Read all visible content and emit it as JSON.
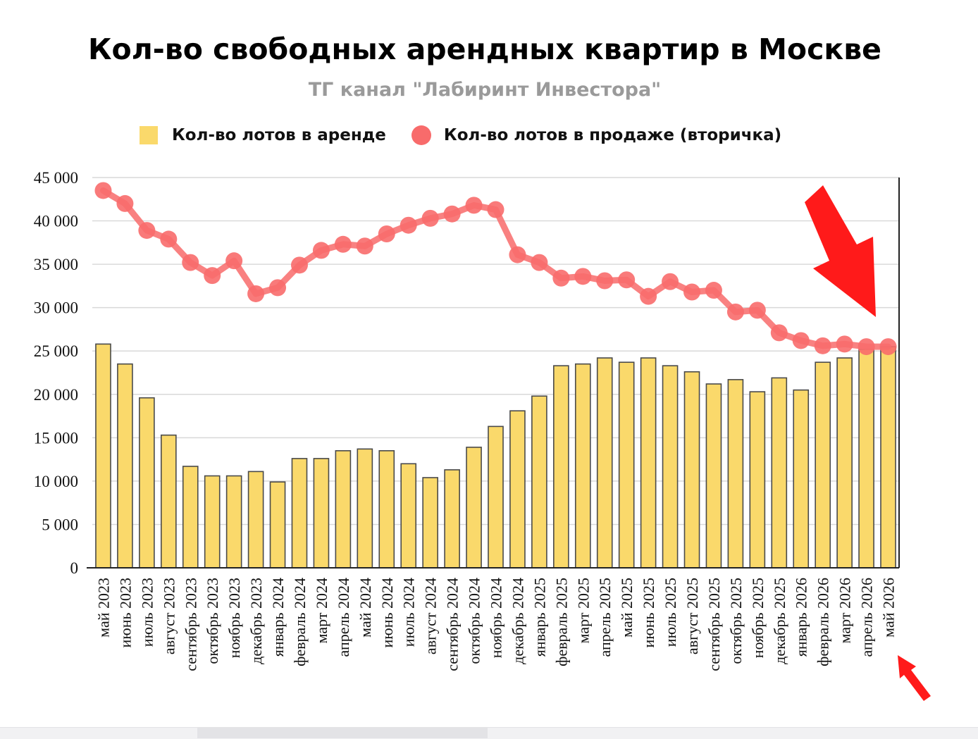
{
  "title": "Кол-во свободных арендных квартир в Москве",
  "subtitle": "ТГ канал \"Лабиринт Инвестора\"",
  "legend": {
    "rent_label": "Кол-во лотов в аренде",
    "sale_label": "Кол-во лотов в продаже (вторичка)"
  },
  "colors": {
    "bar_fill": "#fad96b",
    "bar_stroke": "#4a4a4a",
    "line": "#f86b6b",
    "arrow": "#ff1a1a"
  },
  "chart_data": {
    "type": "bar",
    "title": "Кол-во свободных арендных квартир в Москве",
    "subtitle": "ТГ канал \"Лабиринт Инвестора\"",
    "ylim": [
      0,
      45000
    ],
    "y_ticks": [
      "0",
      "5 000",
      "10 000",
      "15 000",
      "20 000",
      "25 000",
      "30 000",
      "35 000",
      "40 000",
      "45 000"
    ],
    "grid": true,
    "legend_position": "top",
    "categories": [
      "май 2023",
      "июнь 2023",
      "июль 2023",
      "август 2023",
      "сентябрь 2023",
      "октябрь 2023",
      "ноябрь 2023",
      "декабрь 2023",
      "январь 2024",
      "февраль 2024",
      "март 2024",
      "апрель 2024",
      "май 2024",
      "июнь 2024",
      "июль 2024",
      "август 2024",
      "сентябрь 2024",
      "октябрь 2024",
      "ноябрь 2024",
      "декабрь 2024",
      "январь 2025",
      "февраль 2025",
      "март 2025",
      "апрель 2025",
      "май 2025",
      "июнь 2025",
      "июль 2025",
      "август 2025",
      "сентябрь 2025",
      "октябрь 2025",
      "ноябрь 2025",
      "декабрь 2025",
      "январь 2026",
      "февраль 2026",
      "март 2026",
      "апрель 2026",
      "май 2026"
    ],
    "series": [
      {
        "name": "Кол-во лотов в аренде",
        "type": "bar",
        "values": [
          25800,
          23500,
          19600,
          15300,
          11700,
          10600,
          10600,
          11100,
          9900,
          12600,
          12600,
          13500,
          13700,
          13500,
          12000,
          10400,
          11300,
          13900,
          16300,
          18100,
          19800,
          23300,
          23500,
          24200,
          23700,
          24200,
          23300,
          22600,
          21200,
          21700,
          20300,
          21900,
          20500,
          23700,
          24200,
          25200,
          25500
        ]
      },
      {
        "name": "Кол-во лотов в продаже (вторичка)",
        "type": "line",
        "values": [
          43500,
          42000,
          38900,
          37900,
          35200,
          33700,
          35400,
          31600,
          32300,
          34900,
          36600,
          37300,
          37100,
          38500,
          39500,
          40300,
          40800,
          41800,
          41300,
          36100,
          35200,
          33400,
          33600,
          33100,
          33200,
          31300,
          33000,
          31800,
          32000,
          29500,
          29700,
          27100,
          26200,
          25600,
          25800,
          25500,
          25500
        ]
      }
    ]
  }
}
